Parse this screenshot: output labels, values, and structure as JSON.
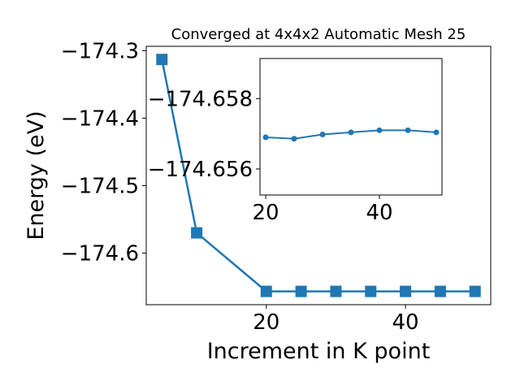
{
  "colors": {
    "series": "#1f77b4",
    "axes": "#000000",
    "background": "#ffffff"
  },
  "chart_data": [
    {
      "type": "line",
      "title": "Converged at 4x4x2 Automatic Mesh 25",
      "xlabel": "Increment in K point",
      "ylabel": "Energy (eV)",
      "marker": "square",
      "xlim": [
        2.75,
        52.25
      ],
      "ylim": [
        -174.6765,
        -174.2935
      ],
      "x_ticks": [
        20,
        40
      ],
      "x_tick_labels": [
        "20",
        "40"
      ],
      "y_ticks": [
        -174.3,
        -174.4,
        -174.5,
        -174.6
      ],
      "y_tick_labels": [
        "−174.3",
        "−174.4",
        "−174.5",
        "−174.6"
      ],
      "grid": false,
      "series": [
        {
          "x": [
            5,
            10,
            20,
            25,
            30,
            35,
            40,
            45,
            50
          ],
          "y": [
            -174.313,
            -174.57,
            -174.6568,
            -174.6568,
            -174.6568,
            -174.6568,
            -174.6568,
            -174.6568,
            -174.6568
          ]
        }
      ]
    },
    {
      "type": "line",
      "inset": true,
      "marker": "circle",
      "xlim": [
        19.0,
        51.0
      ],
      "ylim": [
        -174.65526,
        -174.65914
      ],
      "x_ticks": [
        20,
        40
      ],
      "x_tick_labels": [
        "20",
        "40"
      ],
      "y_ticks": [
        -174.658,
        -174.656
      ],
      "y_tick_labels": [
        "−174.658",
        "−174.656"
      ],
      "grid": false,
      "series": [
        {
          "x": [
            20,
            25,
            30,
            35,
            40,
            45,
            50
          ],
          "y": [
            -174.6569,
            -174.65686,
            -174.65698,
            -174.65704,
            -174.6571,
            -174.6571,
            -174.65704
          ]
        }
      ]
    }
  ]
}
